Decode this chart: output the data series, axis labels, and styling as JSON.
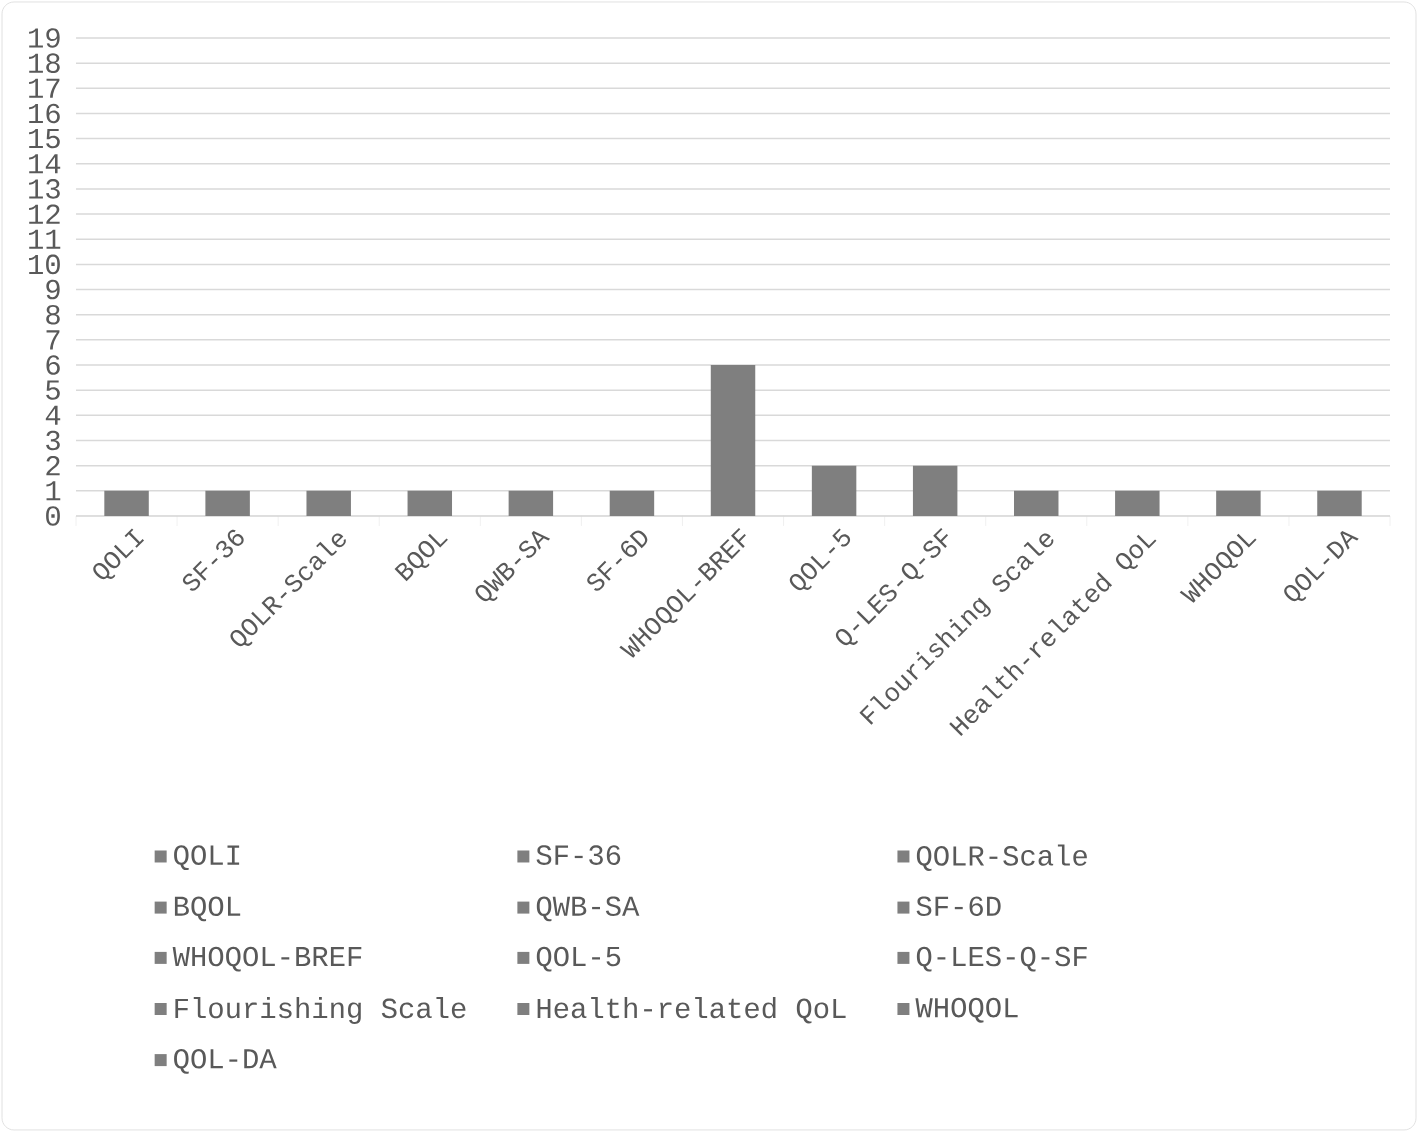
{
  "chart_data": {
    "type": "bar",
    "categories": [
      "QOLI",
      "SF-36",
      "QOLR-Scale",
      "BQOL",
      "QWB-SA",
      "SF-6D",
      "WHOQOL-BREF",
      "QOL-5",
      "Q-LES-Q-SF",
      "Flourishing Scale",
      "Health-related QoL",
      "WHOQOL",
      "QOL-DA"
    ],
    "series": [
      {
        "name": "QOLI",
        "color": "#7f7f7f",
        "values": [
          1,
          null,
          null,
          null,
          null,
          null,
          null,
          null,
          null,
          null,
          null,
          null,
          null
        ]
      },
      {
        "name": "SF-36",
        "color": "#7f7f7f",
        "values": [
          null,
          1,
          null,
          null,
          null,
          null,
          null,
          null,
          null,
          null,
          null,
          null,
          null
        ]
      },
      {
        "name": "QOLR-Scale",
        "color": "#7f7f7f",
        "values": [
          null,
          null,
          1,
          null,
          null,
          null,
          null,
          null,
          null,
          null,
          null,
          null,
          null
        ]
      },
      {
        "name": "BQOL",
        "color": "#7f7f7f",
        "values": [
          null,
          null,
          null,
          1,
          null,
          null,
          null,
          null,
          null,
          null,
          null,
          null,
          null
        ]
      },
      {
        "name": "QWB-SA",
        "color": "#7f7f7f",
        "values": [
          null,
          null,
          null,
          null,
          1,
          null,
          null,
          null,
          null,
          null,
          null,
          null,
          null
        ]
      },
      {
        "name": "SF-6D",
        "color": "#7f7f7f",
        "values": [
          null,
          null,
          null,
          null,
          null,
          1,
          null,
          null,
          null,
          null,
          null,
          null,
          null
        ]
      },
      {
        "name": "WHOQOL-BREF",
        "color": "#7f7f7f",
        "values": [
          null,
          null,
          null,
          null,
          null,
          null,
          6,
          null,
          null,
          null,
          null,
          null,
          null
        ]
      },
      {
        "name": "QOL-5",
        "color": "#7f7f7f",
        "values": [
          null,
          null,
          null,
          null,
          null,
          null,
          null,
          2,
          null,
          null,
          null,
          null,
          null
        ]
      },
      {
        "name": "Q-LES-Q-SF",
        "color": "#7f7f7f",
        "values": [
          null,
          null,
          null,
          null,
          null,
          null,
          null,
          null,
          2,
          null,
          null,
          null,
          null
        ]
      },
      {
        "name": "Flourishing Scale",
        "color": "#7f7f7f",
        "values": [
          null,
          null,
          null,
          null,
          null,
          null,
          null,
          null,
          null,
          1,
          null,
          null,
          null
        ]
      },
      {
        "name": "Health-related QoL",
        "color": "#7f7f7f",
        "values": [
          null,
          null,
          null,
          null,
          null,
          null,
          null,
          null,
          null,
          null,
          1,
          null,
          null
        ]
      },
      {
        "name": "WHOQOL",
        "color": "#7f7f7f",
        "values": [
          null,
          null,
          null,
          null,
          null,
          null,
          null,
          null,
          null,
          null,
          null,
          1,
          null
        ]
      },
      {
        "name": "QOL-DA",
        "color": "#7f7f7f",
        "values": [
          null,
          null,
          null,
          null,
          null,
          null,
          null,
          null,
          null,
          null,
          null,
          null,
          1
        ]
      }
    ],
    "ylim": [
      0,
      19
    ],
    "yticks": [
      0,
      1,
      2,
      3,
      4,
      5,
      6,
      7,
      8,
      9,
      10,
      11,
      12,
      13,
      14,
      15,
      16,
      17,
      18,
      19
    ],
    "grid": "y",
    "legend": "bottom"
  }
}
